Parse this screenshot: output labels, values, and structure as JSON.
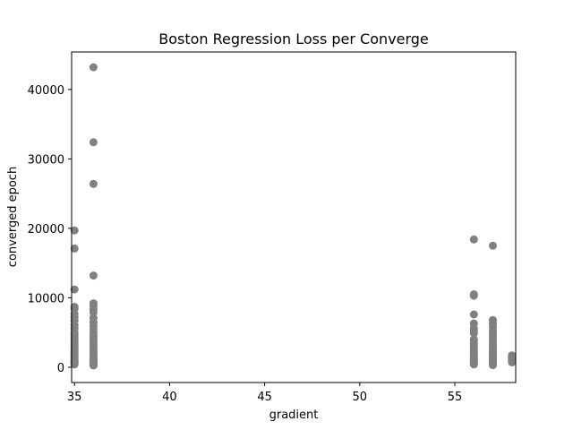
{
  "chart_data": {
    "type": "scatter",
    "title": "Boston Regression Loss per Converge",
    "xlabel": "gradient",
    "ylabel": "converged epoch",
    "xlim": [
      34.85,
      58.2
    ],
    "ylim": [
      -2200,
      45400
    ],
    "xticks": [
      35,
      40,
      45,
      50,
      55
    ],
    "yticks": [
      0,
      10000,
      20000,
      30000,
      40000
    ],
    "xtick_labels": [
      "35",
      "40",
      "45",
      "50",
      "55"
    ],
    "ytick_labels": [
      "0",
      "10000",
      "20000",
      "30000",
      "40000"
    ],
    "grid": false,
    "legend": "none",
    "color": "#808080",
    "series": [
      {
        "x": [
          35,
          35,
          35,
          35,
          35,
          35,
          35,
          35,
          35,
          35,
          35,
          35,
          35,
          35,
          35,
          35,
          35,
          35,
          35,
          35,
          35,
          35,
          35,
          35,
          35,
          35,
          35,
          35,
          35,
          35,
          35,
          36,
          36,
          36,
          36,
          36,
          36,
          36,
          36,
          36,
          36,
          36,
          36,
          36,
          36,
          36,
          36,
          36,
          36,
          36,
          36,
          36,
          36,
          36,
          36,
          36,
          36,
          36,
          36,
          36,
          36,
          36,
          36,
          36,
          36,
          36,
          36,
          36,
          36,
          56,
          56,
          56,
          56,
          56,
          56,
          56,
          56,
          56,
          56,
          56,
          56,
          56,
          56,
          56,
          56,
          56,
          56,
          56,
          56,
          56,
          56,
          56,
          56,
          56,
          57,
          57,
          57,
          57,
          57,
          57,
          57,
          57,
          57,
          57,
          57,
          57,
          57,
          57,
          57,
          57,
          57,
          57,
          57,
          57,
          57,
          57,
          57,
          57,
          57,
          57,
          58,
          58,
          58,
          58,
          58,
          58
        ],
        "y": [
          19700,
          17100,
          11200,
          8700,
          8400,
          7700,
          7200,
          6700,
          6100,
          5600,
          5100,
          4700,
          4300,
          3900,
          3500,
          3200,
          2900,
          2600,
          2300,
          2000,
          1800,
          1600,
          1400,
          1200,
          1000,
          900,
          800,
          700,
          600,
          500,
          400,
          43200,
          32400,
          26400,
          13200,
          9200,
          8800,
          8300,
          7900,
          7100,
          6500,
          6000,
          5500,
          5000,
          4500,
          4100,
          3700,
          3400,
          3100,
          2800,
          2500,
          2200,
          2000,
          1800,
          1600,
          1400,
          1250,
          1100,
          1000,
          900,
          800,
          700,
          600,
          500,
          450,
          400,
          350,
          300,
          250,
          18400,
          10500,
          10300,
          7600,
          6300,
          5600,
          5200,
          4900,
          4000,
          3700,
          3400,
          3100,
          2800,
          2500,
          2200,
          1900,
          1700,
          1500,
          1300,
          1100,
          950,
          800,
          650,
          500,
          400,
          17500,
          6800,
          6300,
          5800,
          5300,
          4900,
          4500,
          4100,
          3700,
          3400,
          3100,
          2800,
          2500,
          2200,
          2000,
          1800,
          1600,
          1400,
          1200,
          1050,
          900,
          750,
          600,
          500,
          400,
          300,
          1700,
          1500,
          1300,
          1100,
          900,
          700
        ]
      }
    ]
  }
}
